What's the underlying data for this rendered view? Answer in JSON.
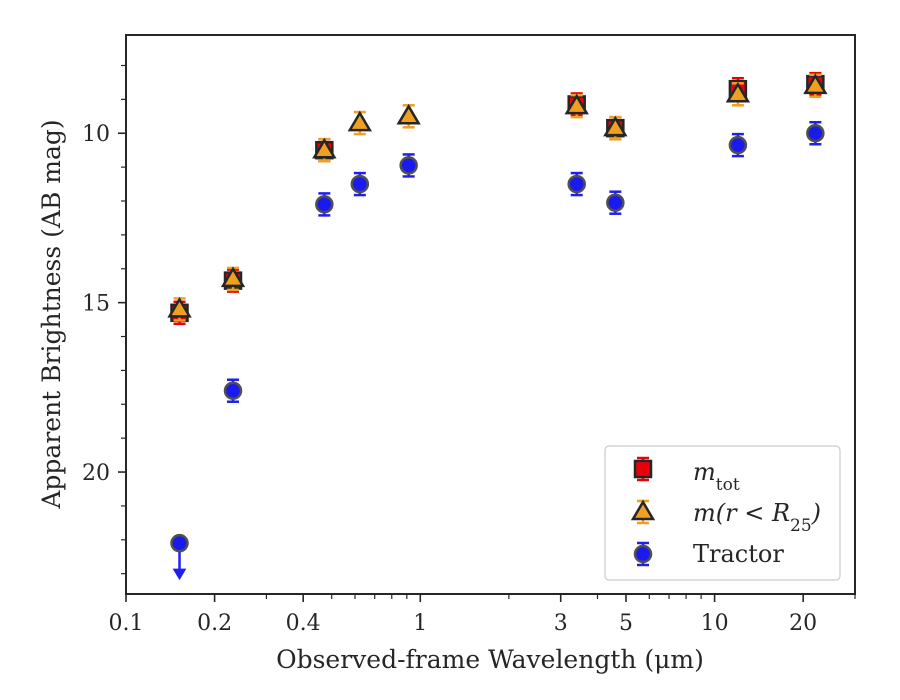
{
  "chart_data": {
    "type": "scatter",
    "xlabel": "Observed-frame Wavelength (μm)",
    "ylabel": "Apparent Brightness (AB mag)",
    "xscale": "log",
    "xlim": [
      0.1,
      30
    ],
    "ylim": [
      23.6,
      7.1
    ],
    "y_inverted": true,
    "x_ticks": [
      0.1,
      0.2,
      0.4,
      1,
      3,
      5,
      10,
      20
    ],
    "x_tick_labels": [
      "0.1",
      "0.2",
      "0.4",
      "1",
      "3",
      "5",
      "10",
      "20"
    ],
    "y_ticks": [
      10,
      15,
      20
    ],
    "y_tick_labels": [
      "10",
      "15",
      "20"
    ],
    "grid": false,
    "legend": {
      "placement": "lower-right",
      "entries": [
        {
          "label_base": "m",
          "label_sub": "tot"
        },
        {
          "label_base": "m(r < R",
          "label_sub": "25",
          "label_tail": ")"
        },
        {
          "label_base": "Tractor",
          "label_sub": ""
        }
      ]
    },
    "series": [
      {
        "name": "m_tot",
        "marker": "square",
        "color": "#e8000b",
        "edge_color": "#262626",
        "error_color": "#e8000b",
        "x": [
          0.152,
          0.231,
          0.472,
          3.4,
          4.6,
          12.0,
          22.0
        ],
        "y": [
          15.3,
          14.35,
          10.5,
          9.15,
          9.85,
          8.7,
          8.55
        ]
      },
      {
        "name": "m(r<R25)",
        "marker": "triangle",
        "color": "#f0a020",
        "edge_color": "#262626",
        "error_color": "#f0a020",
        "x": [
          0.152,
          0.231,
          0.472,
          0.623,
          0.913,
          3.4,
          4.6,
          12.0,
          22.0
        ],
        "y": [
          15.2,
          14.3,
          10.5,
          9.7,
          9.5,
          9.2,
          9.85,
          8.85,
          8.6
        ]
      },
      {
        "name": "Tractor",
        "marker": "circle",
        "color": "#1a1aee",
        "edge_color": "#505050",
        "error_color": "#2020ee",
        "x": [
          0.152,
          0.231,
          0.472,
          0.623,
          0.913,
          3.4,
          4.6,
          12.0,
          22.0
        ],
        "y": [
          22.1,
          17.6,
          12.1,
          11.5,
          10.95,
          11.5,
          12.05,
          10.35,
          10.0
        ],
        "upper_limit": [
          true,
          false,
          false,
          false,
          false,
          false,
          false,
          false,
          false
        ]
      }
    ]
  }
}
